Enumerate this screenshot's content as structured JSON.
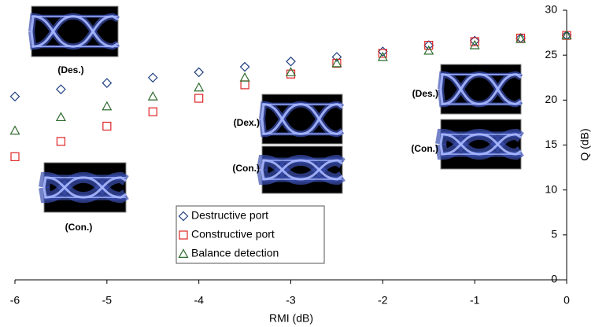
{
  "chart_data": {
    "type": "scatter",
    "x_label": "RMI (dB)",
    "y_label": "Q (dB)",
    "x": [
      -6,
      -5.5,
      -5,
      -4.5,
      -4,
      -3.5,
      -3,
      -2.5,
      -2,
      -1.5,
      -1,
      -0.5,
      0
    ],
    "series": [
      {
        "name": "Destructive port",
        "color": "#1f3f7f",
        "marker": "diamond",
        "values": [
          20.4,
          21.2,
          21.9,
          22.5,
          23.1,
          23.7,
          24.3,
          24.8,
          25.4,
          26.1,
          26.6,
          26.9,
          27.2
        ]
      },
      {
        "name": "Constructive port",
        "color": "#e02424",
        "marker": "square",
        "values": [
          13.7,
          15.4,
          17.1,
          18.7,
          20.2,
          21.7,
          22.9,
          24.1,
          25.2,
          26.1,
          26.5,
          26.9,
          27.2
        ]
      },
      {
        "name": "Balance detection",
        "color": "#2f6b2f",
        "marker": "triangle",
        "values": [
          16.6,
          18.1,
          19.3,
          20.4,
          21.4,
          22.5,
          23.1,
          24.1,
          24.8,
          25.5,
          26.1,
          26.8,
          27.2
        ]
      }
    ],
    "xlim": [
      -6,
      0
    ],
    "xticks": [
      -6,
      -5,
      -4,
      -3,
      -2,
      -1,
      0
    ],
    "ylim": [
      0,
      30
    ],
    "yticks": [
      0,
      5,
      10,
      15,
      20,
      25,
      30
    ],
    "annotations": [
      "(Des.)",
      "(Con.)",
      "(Dex.)",
      "(Con.)",
      "(Des.)",
      "(Con.)"
    ]
  }
}
